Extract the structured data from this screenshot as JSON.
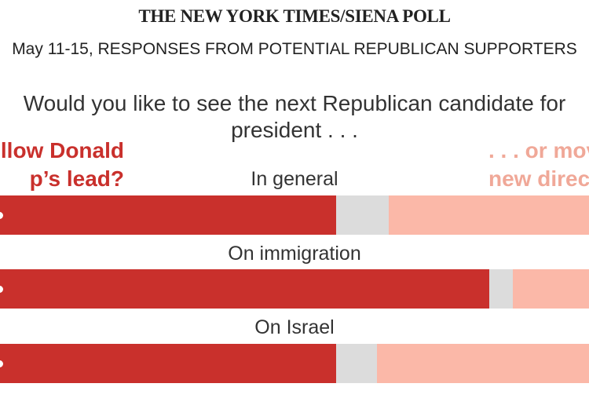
{
  "header": {
    "title": "THE NEW YORK TIMES/SIENA POLL",
    "subtitle": "May 11-15, RESPONSES FROM POTENTIAL REPUBLICAN SUPPORTERS"
  },
  "chart_data": {
    "type": "bar",
    "stacked": true,
    "orientation": "horizontal",
    "title": "Would you like to see the next Republican candidate for president . . .",
    "left_label": "Follow Donald Trump's lead?",
    "right_label": ". . . or move in a new direction?",
    "left_label_visible": "llow Donald p's lead?",
    "right_label_visible": ". . . or mov new direc",
    "categories": [
      "In general",
      "On immigration",
      "On Israel"
    ],
    "series": [
      {
        "key": "follow",
        "values": [
          57,
          83,
          57
        ]
      },
      {
        "key": "unsure",
        "values": [
          9,
          4,
          7
        ]
      },
      {
        "key": "new",
        "values": [
          34,
          13,
          36
        ]
      }
    ],
    "colors": {
      "follow": "#c9302c",
      "unsure": "#dcdcdc",
      "new": "#fbb8a8"
    },
    "xlim": [
      0,
      100
    ]
  }
}
